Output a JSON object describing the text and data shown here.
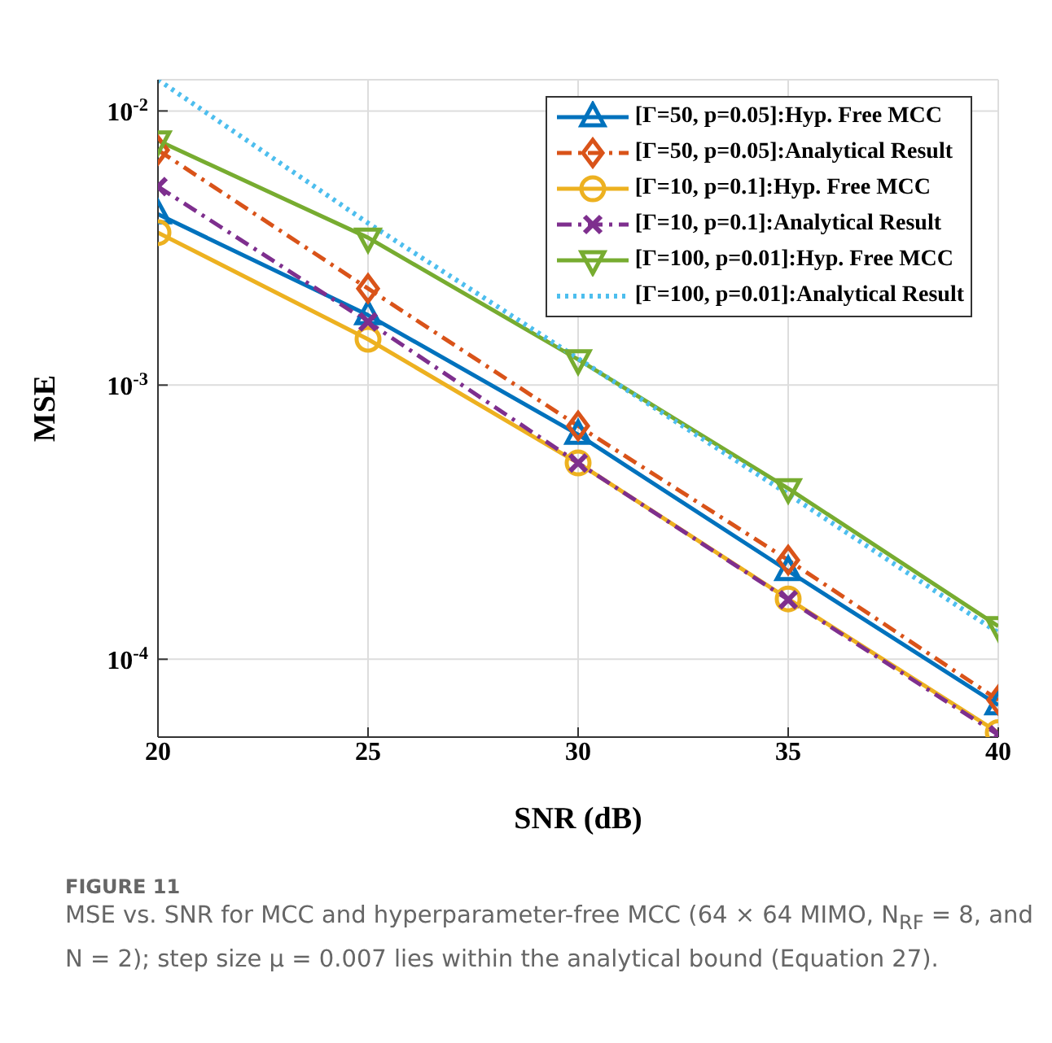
{
  "chart_data": {
    "type": "line",
    "xlabel": "SNR (dB)",
    "ylabel": "MSE",
    "x": [
      20,
      25,
      30,
      35,
      40
    ],
    "xlim": [
      20,
      40
    ],
    "xticks": [
      20,
      25,
      30,
      35,
      40
    ],
    "ylim": [
      5.2e-05,
      0.013
    ],
    "yticks": [
      {
        "value": 0.0001,
        "label": "10$^{-4}$"
      },
      {
        "value": 0.001,
        "label": "10$^{-3}$"
      },
      {
        "value": 0.01,
        "label": "10$^{-2}$"
      }
    ],
    "log": true,
    "grid": true,
    "legend": "top right",
    "series": [
      {
        "name": "[Γ=50, p=0.05]:Hyp. Free MCC",
        "color": "#0072bd",
        "marker": "triangle",
        "line_style": "solid",
        "values": [
          0.0042,
          0.0018,
          0.00066,
          0.00021,
          6.8e-05
        ]
      },
      {
        "name": "[Γ=50, p=0.05]:Analytical Result",
        "color": "#d95319",
        "marker": "diamond",
        "line_style": "dashed",
        "values": [
          0.0072,
          0.00225,
          0.00071,
          0.00023,
          7.1e-05
        ]
      },
      {
        "name": "[Γ=10, p=0.1]:Hyp. Free MCC",
        "color": "#edb120",
        "marker": "circle",
        "line_style": "solid",
        "values": [
          0.0036,
          0.00147,
          0.00052,
          0.000166,
          5.4e-05
        ]
      },
      {
        "name": "[Γ=10, p=0.1]:Analytical Result",
        "color": "#7e2f8e",
        "marker": "cross",
        "line_style": "dashed",
        "values": [
          0.0053,
          0.0017,
          0.00052,
          0.000165,
          5.3e-05
        ]
      },
      {
        "name": "[Γ=100, p=0.01]:Hyp. Free MCC",
        "color": "#77ac30",
        "marker": "triangle-down",
        "line_style": "solid",
        "values": [
          0.0078,
          0.00345,
          0.00124,
          0.00042,
          0.000132
        ]
      },
      {
        "name": "[Γ=100, p=0.01]:Analytical Result",
        "color": "#4dbeee",
        "marker": "none",
        "line_style": "dotted",
        "values": [
          0.013,
          0.0039,
          0.00125,
          0.0004,
          0.000125
        ]
      }
    ],
    "annotations": [
      "FIGURE 11",
      "MSE vs. SNR for MCC and hyperparameter-free MCC (64 × 64 MIMO, N$_{RF}$ = 8, and N = 2); step size μ = 0.007 lies within the analytical bound (Equation 27)."
    ]
  }
}
